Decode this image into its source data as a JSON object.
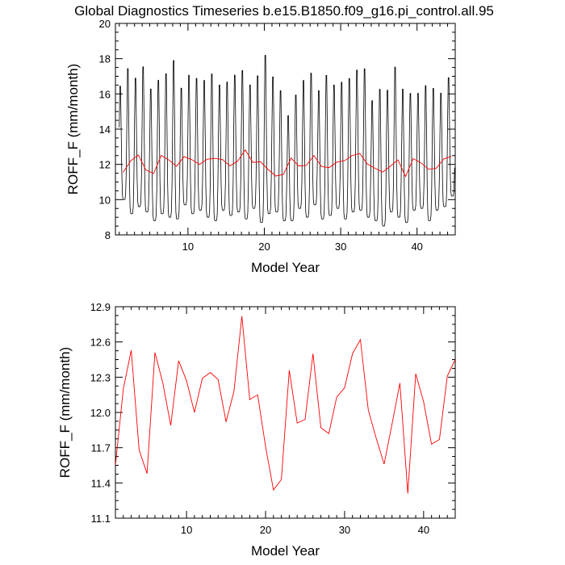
{
  "figure": {
    "title": "Global Diagnostics Timeseries b.e15.B1850.f09_g16.pi_control.all.95"
  },
  "chart_data": [
    {
      "type": "line",
      "xlabel": "Model Year",
      "ylabel": "ROFF_F (mm/month)",
      "xlim": [
        0.5,
        45
      ],
      "ylim": [
        8,
        20
      ],
      "xticks": [
        10,
        20,
        30,
        40
      ],
      "yticks": [
        8,
        10,
        12,
        14,
        16,
        18,
        20
      ],
      "grid": false,
      "series": [
        {
          "role": "monthly",
          "color": "#000000",
          "annual_max": [
            16.8,
            17.9,
            17.3,
            18.0,
            16.7,
            17.2,
            17.6,
            18.4,
            16.7,
            17.5,
            17.3,
            17.2,
            17.6,
            16.9,
            17.1,
            17.5,
            17.8,
            16.9,
            17.5,
            18.7,
            17.4,
            16.6,
            15.1,
            16.3,
            17.2,
            17.6,
            16.6,
            17.5,
            16.9,
            17.1,
            17.3,
            17.8,
            17.9,
            16.0,
            16.7,
            16.6,
            18.0,
            16.7,
            16.4,
            16.4,
            16.9,
            16.7,
            16.4,
            17.3
          ],
          "annual_min": [
            10.0,
            9.2,
            9.6,
            9.3,
            8.8,
            9.2,
            9.0,
            8.9,
            9.7,
            9.2,
            9.4,
            9.0,
            8.8,
            9.4,
            9.1,
            9.3,
            8.9,
            9.5,
            8.7,
            9.2,
            9.3,
            8.8,
            8.8,
            9.5,
            9.0,
            9.7,
            8.9,
            9.1,
            9.5,
            8.9,
            9.3,
            9.4,
            9.0,
            8.8,
            8.5,
            9.3,
            9.0,
            8.7,
            9.4,
            9.5,
            8.8,
            9.4,
            9.6,
            10.2
          ]
        },
        {
          "role": "annual-mean",
          "color": "#ff0000",
          "x": [
            1.5,
            2.5,
            3.5,
            4.5,
            5.5,
            6.5,
            7.5,
            8.5,
            9.5,
            10.5,
            11.5,
            12.5,
            13.5,
            14.5,
            15.5,
            16.5,
            17.5,
            18.5,
            19.5,
            20.5,
            21.5,
            22.5,
            23.5,
            24.5,
            25.5,
            26.5,
            27.5,
            28.5,
            29.5,
            30.5,
            31.5,
            32.5,
            33.5,
            34.5,
            35.5,
            36.5,
            37.5,
            38.5,
            39.5,
            40.5,
            41.5,
            42.5,
            43.5,
            44.5
          ],
          "values": [
            11.55,
            12.2,
            12.53,
            11.68,
            11.48,
            12.51,
            12.25,
            11.89,
            12.44,
            12.27,
            12.0,
            12.29,
            12.34,
            12.28,
            11.92,
            12.18,
            12.82,
            12.11,
            12.15,
            11.71,
            11.34,
            11.43,
            12.36,
            11.91,
            11.94,
            12.5,
            11.87,
            11.82,
            12.13,
            12.21,
            12.5,
            12.62,
            12.02,
            11.78,
            11.56,
            11.9,
            12.25,
            11.31,
            12.33,
            12.09,
            11.73,
            11.77,
            12.31,
            12.45
          ]
        }
      ]
    },
    {
      "type": "line",
      "xlabel": "Model Year",
      "ylabel": "ROFF_F (mm/month)",
      "xlim": [
        1,
        44
      ],
      "ylim": [
        11.1,
        12.9
      ],
      "xticks": [
        10,
        20,
        30,
        40
      ],
      "yticks": [
        11.1,
        11.4,
        11.7,
        12.0,
        12.3,
        12.6,
        12.9
      ],
      "ytick_labels": [
        "11.1",
        "11.4",
        "11.7",
        "12.0",
        "12.3",
        "12.6",
        "12.9"
      ],
      "grid": false,
      "series": [
        {
          "role": "annual-mean",
          "color": "#ff0000",
          "x": [
            1,
            2,
            3,
            4,
            5,
            6,
            7,
            8,
            9,
            10,
            11,
            12,
            13,
            14,
            15,
            16,
            17,
            18,
            19,
            20,
            21,
            22,
            23,
            24,
            25,
            26,
            27,
            28,
            29,
            30,
            31,
            32,
            33,
            34,
            35,
            36,
            37,
            38,
            39,
            40,
            41,
            42,
            43,
            44
          ],
          "values": [
            11.55,
            12.2,
            12.53,
            11.68,
            11.48,
            12.51,
            12.25,
            11.89,
            12.44,
            12.27,
            12.0,
            12.29,
            12.34,
            12.28,
            11.92,
            12.18,
            12.82,
            12.11,
            12.15,
            11.71,
            11.34,
            11.43,
            12.36,
            11.91,
            11.94,
            12.5,
            11.87,
            11.82,
            12.13,
            12.21,
            12.5,
            12.62,
            12.02,
            11.78,
            11.56,
            11.9,
            12.25,
            11.31,
            12.33,
            12.09,
            11.73,
            11.77,
            12.31,
            12.45
          ]
        }
      ]
    }
  ]
}
